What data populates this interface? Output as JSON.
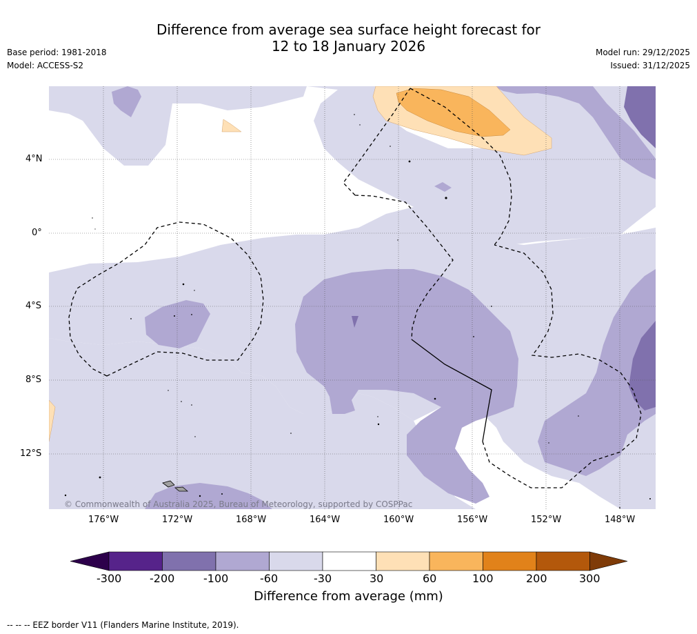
{
  "title_line1": "Difference from average sea surface height forecast for",
  "title_line2": "12 to 18 January 2026",
  "base_period": "Base period: 1981-2018",
  "model": "Model: ACCESS-S2",
  "model_run": "Model run: 29/12/2025",
  "issued": "Issued: 31/12/2025",
  "copyright": "© Commonwealth of Australia 2025, Bureau of Meteorology, supported by COSPPac",
  "footnote": "--  --  -- EEZ border V11 (Flanders Marine Institute, 2019).",
  "lat_labels": [
    "4°N",
    "0°",
    "4°S",
    "8°S",
    "12°S"
  ],
  "lon_labels": [
    "176°W",
    "172°W",
    "168°W",
    "164°W",
    "160°W",
    "156°W",
    "152°W",
    "148°W"
  ],
  "colorbar": {
    "title": "Difference from average (mm)",
    "ticks": [
      "-300",
      "-200",
      "-100",
      "-60",
      "-30",
      "30",
      "60",
      "100",
      "200",
      "300"
    ],
    "colors": [
      "#56238a",
      "#8071ad",
      "#b0a8d2",
      "#d9d9eb",
      "#ffffff",
      "#fee0b6",
      "#f9b55c",
      "#e1821a",
      "#b3580b"
    ],
    "under_color": "#2d004b",
    "over_color": "#7f3b08"
  },
  "map_colors": {
    "light_lavender": "#d9d9eb",
    "lavender": "#b0a8d2",
    "purple": "#8071ad",
    "light_orange": "#fee0b6",
    "orange": "#f9b55c",
    "land": "#a0a0a0"
  }
}
